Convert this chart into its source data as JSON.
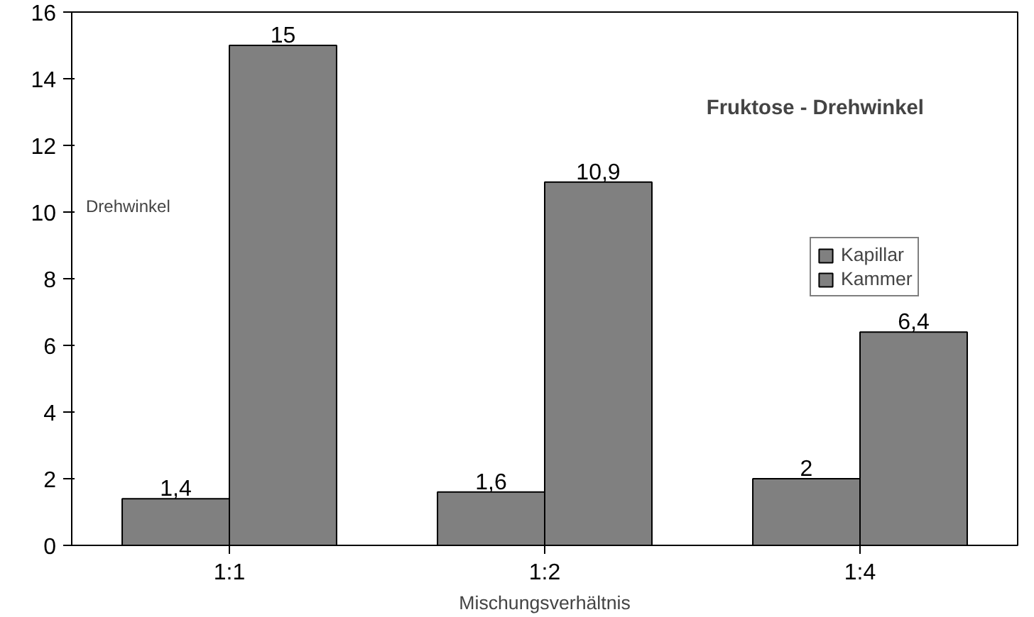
{
  "chart_data": {
    "type": "bar",
    "title": "Fruktose - Drehwinkel",
    "xlabel": "Mischungsverhältnis",
    "ylabel": "Drehwinkel",
    "categories": [
      "1:1",
      "1:2",
      "1:4"
    ],
    "series": [
      {
        "name": "Kapillar",
        "color": "#808080",
        "values": [
          1.4,
          1.6,
          2
        ],
        "value_labels": [
          "1,4",
          "1,6",
          "2"
        ]
      },
      {
        "name": "Kammer",
        "color": "#808080",
        "values": [
          15,
          10.9,
          6.4
        ],
        "value_labels": [
          "15",
          "10,9",
          "6,4"
        ]
      }
    ],
    "ylim": [
      0,
      16
    ],
    "yticks": [
      0,
      2,
      4,
      6,
      8,
      10,
      12,
      14,
      16
    ],
    "grid": false,
    "legend": "right"
  }
}
